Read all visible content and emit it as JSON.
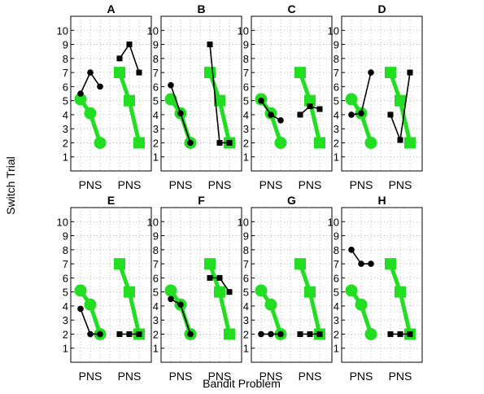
{
  "chart_data": {
    "type": "line",
    "xlabel": "Bandit Problem",
    "ylabel": "Switch Trial",
    "ylim": [
      0,
      11
    ],
    "yticks": [
      1,
      2,
      3,
      4,
      5,
      6,
      7,
      8,
      9,
      10
    ],
    "group_labels": [
      "PNS",
      "PNS"
    ],
    "grid": true,
    "colors": {
      "green": "#22dd22",
      "black": "#000000"
    },
    "panels": [
      {
        "title": "A",
        "circles_green": [
          5.1,
          4.1,
          2.0
        ],
        "circles_black": [
          5.5,
          7.0,
          6.0
        ],
        "squares_green": [
          7.0,
          5.0,
          2.0
        ],
        "squares_black": [
          8.0,
          9.0,
          7.0
        ]
      },
      {
        "title": "B",
        "circles_green": [
          5.1,
          4.1,
          2.0
        ],
        "circles_black": [
          6.1,
          4.1,
          2.0
        ],
        "squares_green": [
          7.0,
          5.0,
          2.0
        ],
        "squares_black": [
          9.0,
          2.0,
          2.0
        ]
      },
      {
        "title": "C",
        "circles_green": [
          5.1,
          4.1,
          2.0
        ],
        "circles_black": [
          5.0,
          4.0,
          3.6
        ],
        "squares_green": [
          7.0,
          5.0,
          2.0
        ],
        "squares_black": [
          4.0,
          4.6,
          4.4
        ]
      },
      {
        "title": "D",
        "circles_green": [
          5.1,
          4.1,
          2.0
        ],
        "circles_black": [
          4.0,
          4.1,
          7.0
        ],
        "squares_green": [
          7.0,
          5.0,
          2.0
        ],
        "squares_black": [
          4.0,
          2.2,
          7.0
        ]
      },
      {
        "title": "E",
        "circles_green": [
          5.1,
          4.1,
          2.0
        ],
        "circles_black": [
          3.8,
          2.0,
          2.0
        ],
        "squares_green": [
          7.0,
          5.0,
          2.0
        ],
        "squares_black": [
          2.0,
          2.0,
          2.0
        ]
      },
      {
        "title": "F",
        "circles_green": [
          5.1,
          4.1,
          2.0
        ],
        "circles_black": [
          4.5,
          4.1,
          2.0
        ],
        "squares_green": [
          7.0,
          5.0,
          2.0
        ],
        "squares_black": [
          6.0,
          6.0,
          5.0
        ]
      },
      {
        "title": "G",
        "circles_green": [
          5.1,
          4.1,
          2.0
        ],
        "circles_black": [
          2.0,
          2.0,
          2.0
        ],
        "squares_green": [
          7.0,
          5.0,
          2.0
        ],
        "squares_black": [
          2.0,
          2.0,
          2.0
        ]
      },
      {
        "title": "H",
        "circles_green": [
          5.1,
          4.1,
          2.0
        ],
        "circles_black": [
          8.0,
          7.0,
          7.0
        ],
        "squares_green": [
          7.0,
          5.0,
          2.0
        ],
        "squares_black": [
          2.0,
          2.0,
          2.0
        ]
      }
    ]
  }
}
